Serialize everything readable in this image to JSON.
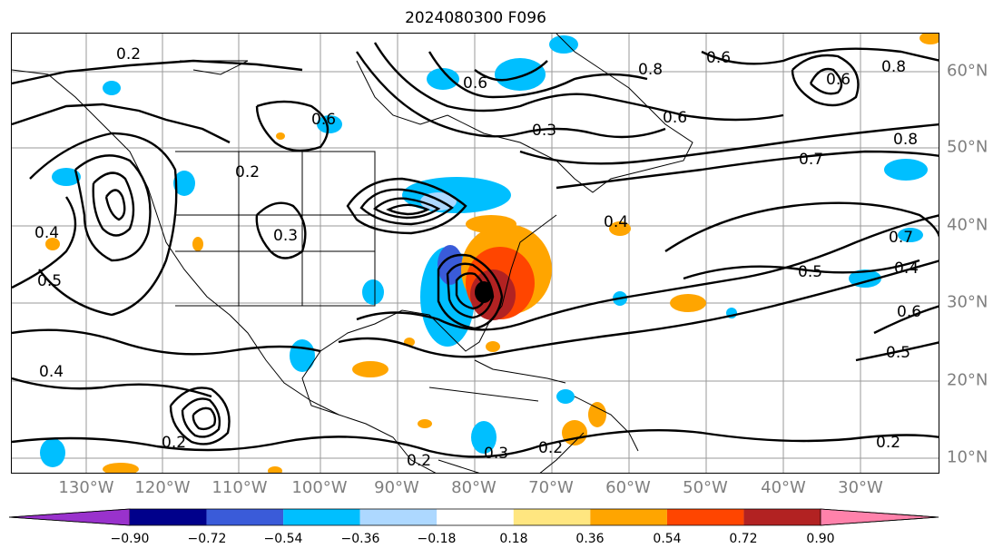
{
  "title": "2024080300 F096",
  "lon_labels": [
    "130°W",
    "120°W",
    "110°W",
    "100°W",
    "90°W",
    "80°W",
    "70°W",
    "60°W",
    "50°W",
    "40°W",
    "30°W"
  ],
  "lat_labels": [
    "60°N",
    "50°N",
    "40°N",
    "30°N",
    "20°N",
    "10°N"
  ],
  "contour_labels": [
    "0.2",
    "0.6",
    "0.8",
    "0.6",
    "0.8",
    "0.6",
    "0.3",
    "0.6",
    "0.8",
    "0.7",
    "0.4",
    "0.7",
    "0.5",
    "0.4",
    "0.6",
    "0.5",
    "0.2",
    "0.3",
    "0.2",
    "0.4",
    "0.5",
    "0.4",
    "0.2",
    "0.2",
    "0.3",
    "0.2",
    "0.6"
  ],
  "colorbar": {
    "ticks": [
      "−0.90",
      "−0.72",
      "−0.54",
      "−0.36",
      "−0.18",
      "0.18",
      "0.36",
      "0.54",
      "0.72",
      "0.90"
    ],
    "colors": [
      "#9932cc",
      "#00008b",
      "#3a5bd9",
      "#00bfff",
      "#add8ff",
      "#ffffff",
      "#ffe680",
      "#ffa500",
      "#ff4500",
      "#b22222",
      "#ff82ab"
    ]
  }
}
